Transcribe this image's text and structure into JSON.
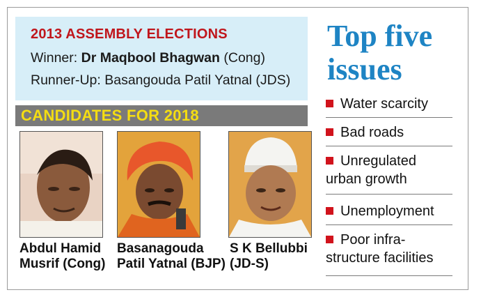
{
  "election": {
    "title": "2013 ASSEMBLY ELECTIONS",
    "winner_label": "Winner:",
    "winner_name": "Dr Maqbool Bhagwan",
    "winner_party": "(Cong)",
    "runnerup_label": "Runner-Up:",
    "runnerup_text": "Basangouda Patil Yatnal (JDS)"
  },
  "candidates_header": "CANDIDATES FOR 2018",
  "candidates": [
    {
      "line1": "Abdul Hamid",
      "line2": "Musrif (Cong)",
      "photo": "candidate-photo"
    },
    {
      "line1": "Basanagouda",
      "line2": "Patil Yatnal (BJP)",
      "photo": "candidate-photo"
    },
    {
      "line1": "S K Bellubbi",
      "line2": "(JD-S)",
      "photo": "candidate-photo"
    }
  ],
  "issues": {
    "title_line1": "Top five",
    "title_line2": "issues",
    "items": [
      {
        "line1": "Water scarcity"
      },
      {
        "line1": "Bad roads"
      },
      {
        "line1": "Unregulated",
        "line2": "urban growth"
      },
      {
        "line1": "Unemployment"
      },
      {
        "line1": "Poor infra-",
        "line2": "structure facilities"
      }
    ]
  },
  "colors": {
    "accent_red": "#c0161c",
    "title_blue": "#1e84c4",
    "header_yellow": "#f4dd12",
    "panel_blue": "#d7eef8"
  }
}
